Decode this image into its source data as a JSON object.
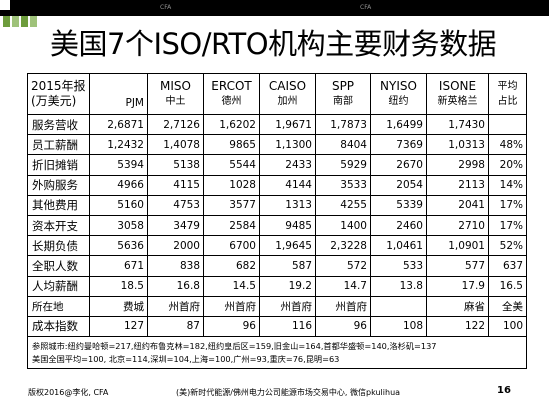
{
  "top_bar": {
    "items": [
      "CFA",
      "CFA"
    ]
  },
  "slide": {
    "title": "美国7个ISO/RTO机构主要财务数据"
  },
  "table": {
    "header": {
      "year_line1": "2015年报",
      "year_line2": "(万美元)",
      "pjm": "PJM",
      "cols": [
        {
          "line1": "MISO",
          "line2": "中土"
        },
        {
          "line1": "ERCOT",
          "line2": "德州"
        },
        {
          "line1": "CAISO",
          "line2": "加州"
        },
        {
          "line1": "SPP",
          "line2": "南部"
        },
        {
          "line1": "NYISO",
          "line2": "纽约"
        },
        {
          "line1": "ISONE",
          "line2": "新英格兰"
        },
        {
          "line1": "平均",
          "line2": "占比"
        }
      ]
    },
    "rows": [
      {
        "label": "服务营收",
        "values": [
          "2,6871",
          "2,7126",
          "1,6202",
          "1,9671",
          "1,7873",
          "1,6499",
          "1,7430",
          ""
        ]
      },
      {
        "label": "员工薪酬",
        "values": [
          "1,2432",
          "1,4078",
          "9865",
          "1,1300",
          "8404",
          "7369",
          "1,0313",
          "48%"
        ]
      },
      {
        "label": "折旧摊销",
        "values": [
          "5394",
          "5138",
          "5544",
          "2433",
          "5929",
          "2670",
          "2998",
          "20%"
        ]
      },
      {
        "label": "外购服务",
        "values": [
          "4966",
          "4115",
          "1028",
          "4144",
          "3533",
          "2054",
          "2113",
          "14%"
        ]
      },
      {
        "label": "其他费用",
        "values": [
          "5160",
          "4753",
          "3577",
          "1313",
          "4255",
          "5339",
          "2041",
          "17%"
        ]
      },
      {
        "label": "资本开支",
        "values": [
          "3058",
          "3479",
          "2584",
          "9485",
          "1400",
          "2460",
          "2710",
          "17%"
        ]
      },
      {
        "label": "长期负债",
        "values": [
          "5636",
          "2000",
          "6700",
          "1,9645",
          "2,3228",
          "1,0461",
          "1,0901",
          "52%"
        ]
      },
      {
        "label": "全职人数",
        "values": [
          "671",
          "838",
          "682",
          "587",
          "572",
          "533",
          "577",
          "637"
        ]
      },
      {
        "label": "人均薪酬",
        "values": [
          "18.5",
          "16.8",
          "14.5",
          "19.2",
          "14.7",
          "13.8",
          "17.9",
          "16.5"
        ]
      }
    ],
    "location_row": {
      "label": "所在地",
      "values": [
        "费城",
        "州首府",
        "州首府",
        "州首府",
        "州首府",
        "",
        "麻省",
        "全美"
      ]
    },
    "cost_row": {
      "label": "成本指数",
      "values": [
        "127",
        "87",
        "96",
        "116",
        "96",
        "108",
        "122",
        "100"
      ]
    },
    "note_line1": "参照城市:纽约曼哈顿=217,纽约布鲁克林=182,纽约皇后区=159,旧金山=164,首都华盛顿=140,洛杉矶=137",
    "note_line2": "美国全国平均=100, 北京=114,深圳=104,上海=100,广州=93,重庆=76,昆明=63"
  },
  "footer": {
    "copyright": "版权2016@李化, CFA",
    "source": "(美)新时代能源/佛州电力公司能源市场交易中心, 微信pkulihua",
    "page_number": "16"
  },
  "colors": {
    "accent_green": "#6d9c3c",
    "light_green": "#9fc27a"
  }
}
